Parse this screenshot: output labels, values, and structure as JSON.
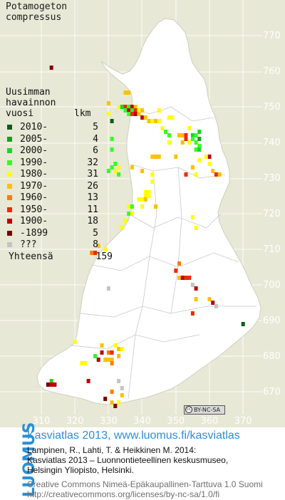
{
  "species": {
    "genus": "Potamogeton",
    "epithet": "compressus"
  },
  "legend": {
    "header_lines": [
      "Uusimman",
      "havainnon",
      "vuosi"
    ],
    "count_header": "lkm",
    "rows": [
      {
        "period": "2010-",
        "count": "5",
        "color": "#0b5e12"
      },
      {
        "period": "2005-",
        "count": "4",
        "color": "#11a21c"
      },
      {
        "period": "2000-",
        "count": "6",
        "color": "#19d624"
      },
      {
        "period": "1990-",
        "count": "32",
        "color": "#33ff1f"
      },
      {
        "period": "1980-",
        "count": "31",
        "color": "#ffff00"
      },
      {
        "period": "1970-",
        "count": "26",
        "color": "#ffc000"
      },
      {
        "period": "1960-",
        "count": "13",
        "color": "#ff7a00"
      },
      {
        "period": "1950-",
        "count": "11",
        "color": "#ee2a00"
      },
      {
        "period": "1900-",
        "count": "18",
        "color": "#c00000"
      },
      {
        "period": "-1899",
        "count": "5",
        "color": "#7a0000"
      },
      {
        "period": "???",
        "count": "8",
        "color": "#c4c4c4"
      }
    ],
    "total_label": "Yhteensä",
    "total_value": "159"
  },
  "axes": {
    "y_ticks": [
      "770",
      "760",
      "750",
      "740",
      "730",
      "720",
      "710",
      "700",
      "690",
      "680",
      "670"
    ],
    "x_ticks": [
      "310",
      "320",
      "330",
      "340",
      "350",
      "360",
      "370"
    ]
  },
  "badge": {
    "symbol": "cc",
    "text": "BY-NC-SA"
  },
  "footer": {
    "logo": "LUOMUS",
    "title": "Kasviatlas 2013, www.luomus.fi/kasviatlas",
    "citation_lines": [
      "Lampinen, R., Lahti, T. & Heikkinen M. 2014:",
      "Kasviatlas 2013 – Luonnontieteellinen keskusmuseo,",
      "Helsingin Yliopisto, Helsinki."
    ],
    "license_lines": [
      "Creative Commons Nimeä-Epäkaupallinen-Tarttuva 1.0 Suomi",
      "http://creativecommons.org/licenses/by-nc-sa/1.0/fi"
    ]
  },
  "map_data": {
    "grid_units": "10 km (YKJ)",
    "records": [
      {
        "e": 313,
        "n": 761,
        "c": "#7a0000"
      },
      {
        "e": 335,
        "n": 754,
        "c": "#ffc000"
      },
      {
        "e": 336,
        "n": 754,
        "c": "#ffc000"
      },
      {
        "e": 330,
        "n": 751,
        "c": "#ffc000"
      },
      {
        "e": 333,
        "n": 750,
        "c": "#ffff00"
      },
      {
        "e": 334,
        "n": 750,
        "c": "#19d624"
      },
      {
        "e": 335,
        "n": 750,
        "c": "#ee2a00"
      },
      {
        "e": 336,
        "n": 750,
        "c": "#33ff1f"
      },
      {
        "e": 337,
        "n": 750,
        "c": "#c00000"
      },
      {
        "e": 338,
        "n": 750,
        "c": "#ffc000"
      },
      {
        "e": 335,
        "n": 749,
        "c": "#33ff1f"
      },
      {
        "e": 336,
        "n": 749,
        "c": "#c00000"
      },
      {
        "e": 337,
        "n": 749,
        "c": "#33ff1f"
      },
      {
        "e": 338,
        "n": 749,
        "c": "#ee2a00"
      },
      {
        "e": 339,
        "n": 749,
        "c": "#ffff00"
      },
      {
        "e": 340,
        "n": 749,
        "c": "#ffc000"
      },
      {
        "e": 345,
        "n": 749,
        "c": "#ffff00"
      },
      {
        "e": 336,
        "n": 748,
        "c": "#33ff1f"
      },
      {
        "e": 337,
        "n": 748,
        "c": "#ee2a00"
      },
      {
        "e": 338,
        "n": 748,
        "c": "#c00000"
      },
      {
        "e": 339,
        "n": 748,
        "c": "#ffc000"
      },
      {
        "e": 330,
        "n": 748,
        "c": "#ffff00"
      },
      {
        "e": 348,
        "n": 747,
        "c": "#ffff00"
      },
      {
        "e": 340,
        "n": 747,
        "c": "#c00000"
      },
      {
        "e": 341,
        "n": 747,
        "c": "#ffc000"
      },
      {
        "e": 349,
        "n": 747,
        "c": "#ffff00"
      },
      {
        "e": 331,
        "n": 746,
        "c": "#0b5e12"
      },
      {
        "e": 342,
        "n": 746,
        "c": "#ffc000"
      },
      {
        "e": 343,
        "n": 746,
        "c": "#ffff00"
      },
      {
        "e": 344,
        "n": 746,
        "c": "#ffc000"
      },
      {
        "e": 345,
        "n": 746,
        "c": "#ffff00"
      },
      {
        "e": 354,
        "n": 744,
        "c": "#ffff00"
      },
      {
        "e": 346,
        "n": 744,
        "c": "#ffff00"
      },
      {
        "e": 347,
        "n": 743,
        "c": "#33ff1f"
      },
      {
        "e": 348,
        "n": 742,
        "c": "#33ff1f"
      },
      {
        "e": 351,
        "n": 742,
        "c": "#ffc000"
      },
      {
        "e": 352,
        "n": 742,
        "c": "#ffc000"
      },
      {
        "e": 353,
        "n": 742,
        "c": "#ee2a00"
      },
      {
        "e": 355,
        "n": 742,
        "c": "#19d624"
      },
      {
        "e": 356,
        "n": 742,
        "c": "#33ff1f"
      },
      {
        "e": 357,
        "n": 743,
        "c": "#19d624"
      },
      {
        "e": 331,
        "n": 741,
        "c": "#33ff1f"
      },
      {
        "e": 353,
        "n": 741,
        "c": "#ee2a00"
      },
      {
        "e": 355,
        "n": 741,
        "c": "#33ff1f"
      },
      {
        "e": 357,
        "n": 741,
        "c": "#11a21c"
      },
      {
        "e": 348,
        "n": 740,
        "c": "#ffff00"
      },
      {
        "e": 352,
        "n": 740,
        "c": "#ffc000"
      },
      {
        "e": 354,
        "n": 740,
        "c": "#ffff00"
      },
      {
        "e": 356,
        "n": 740,
        "c": "#33ff1f"
      },
      {
        "e": 357,
        "n": 739,
        "c": "#33ff1f"
      },
      {
        "e": 331,
        "n": 738,
        "c": "#33ff1f"
      },
      {
        "e": 356,
        "n": 738,
        "c": "#33ff1f"
      },
      {
        "e": 357,
        "n": 738,
        "c": "#19d624"
      },
      {
        "e": 343,
        "n": 736,
        "c": "#ffc000"
      },
      {
        "e": 344,
        "n": 736,
        "c": "#ffc000"
      },
      {
        "e": 345,
        "n": 736,
        "c": "#ffc000"
      },
      {
        "e": 350,
        "n": 736,
        "c": "#ffc000"
      },
      {
        "e": 360,
        "n": 736,
        "c": "#c00000"
      },
      {
        "e": 357,
        "n": 735,
        "c": "#ffff00"
      },
      {
        "e": 359,
        "n": 736,
        "c": "#ffff00"
      },
      {
        "e": 332,
        "n": 734,
        "c": "#33ff1f"
      },
      {
        "e": 331,
        "n": 733,
        "c": "#33ff1f"
      },
      {
        "e": 333,
        "n": 733,
        "c": "#ffff00"
      },
      {
        "e": 337,
        "n": 733,
        "c": "#ffc000"
      },
      {
        "e": 355,
        "n": 733,
        "c": "#ffc000"
      },
      {
        "e": 360,
        "n": 734,
        "c": "#ffff00"
      },
      {
        "e": 361,
        "n": 732,
        "c": "#ffc000"
      },
      {
        "e": 330,
        "n": 732,
        "c": "#33ff1f"
      },
      {
        "e": 332,
        "n": 732,
        "c": "#ffff00"
      },
      {
        "e": 333,
        "n": 731,
        "c": "#33ff1f"
      },
      {
        "e": 340,
        "n": 732,
        "c": "#ffc000"
      },
      {
        "e": 343,
        "n": 731,
        "c": "#ffff00"
      },
      {
        "e": 353,
        "n": 731,
        "c": "#ee2a00"
      },
      {
        "e": 356,
        "n": 731,
        "c": "#ffff00"
      },
      {
        "e": 362,
        "n": 731,
        "c": "#ee2a00"
      },
      {
        "e": 363,
        "n": 731,
        "c": "#ffc000"
      },
      {
        "e": 343,
        "n": 729,
        "c": "#ffff00"
      },
      {
        "e": 341,
        "n": 726,
        "c": "#ffff00"
      },
      {
        "e": 342,
        "n": 726,
        "c": "#ffff00"
      },
      {
        "e": 341,
        "n": 725,
        "c": "#ffff00"
      },
      {
        "e": 342,
        "n": 725,
        "c": "#ffff00"
      },
      {
        "e": 339,
        "n": 724,
        "c": "#ffff00"
      },
      {
        "e": 340,
        "n": 724,
        "c": "#ffff00"
      },
      {
        "e": 341,
        "n": 724,
        "c": "#ffc000"
      },
      {
        "e": 336,
        "n": 722,
        "c": "#ffff00"
      },
      {
        "e": 337,
        "n": 722,
        "c": "#33ff1f"
      },
      {
        "e": 340,
        "n": 722,
        "c": "#ffff00"
      },
      {
        "e": 344,
        "n": 722,
        "c": "#ffc000"
      },
      {
        "e": 336,
        "n": 720,
        "c": "#33ff1f"
      },
      {
        "e": 337,
        "n": 720,
        "c": "#ffff00"
      },
      {
        "e": 335,
        "n": 718,
        "c": "#ffff00"
      },
      {
        "e": 334,
        "n": 716,
        "c": "#ffff00"
      },
      {
        "e": 355,
        "n": 719,
        "c": "#ffff00"
      },
      {
        "e": 356,
        "n": 716,
        "c": "#ffff00"
      },
      {
        "e": 329,
        "n": 710,
        "c": "#ffff00"
      },
      {
        "e": 325,
        "n": 709,
        "c": "#ff7a00"
      },
      {
        "e": 326,
        "n": 709,
        "c": "#ee2a00"
      },
      {
        "e": 327,
        "n": 711,
        "c": "#ffc000"
      },
      {
        "e": 351,
        "n": 706,
        "c": "#ff7a00"
      },
      {
        "e": 350,
        "n": 704,
        "c": "#ee2a00"
      },
      {
        "e": 351,
        "n": 702,
        "c": "#ffc000"
      },
      {
        "e": 352,
        "n": 702,
        "c": "#c00000"
      },
      {
        "e": 353,
        "n": 702,
        "c": "#ee2a00"
      },
      {
        "e": 354,
        "n": 702,
        "c": "#ee2a00"
      },
      {
        "e": 355,
        "n": 700,
        "c": "#c4c4c4"
      },
      {
        "e": 356,
        "n": 699,
        "c": "#c00000"
      },
      {
        "e": 356,
        "n": 696,
        "c": "#ffc000"
      },
      {
        "e": 360,
        "n": 696,
        "c": "#ffc000"
      },
      {
        "e": 361,
        "n": 695,
        "c": "#c00000"
      },
      {
        "e": 362,
        "n": 694,
        "c": "#c4c4c4"
      },
      {
        "e": 330,
        "n": 699,
        "c": "#c4c4c4"
      },
      {
        "e": 355,
        "n": 692,
        "c": "#ee2a00"
      },
      {
        "e": 370,
        "n": 689,
        "c": "#0b5e12"
      },
      {
        "e": 320,
        "n": 684,
        "c": "#ffff00"
      },
      {
        "e": 328,
        "n": 683,
        "c": "#ffc000"
      },
      {
        "e": 332,
        "n": 683,
        "c": "#ffff00"
      },
      {
        "e": 333,
        "n": 682,
        "c": "#ffc000"
      },
      {
        "e": 334,
        "n": 682,
        "c": "#ffff00"
      },
      {
        "e": 328,
        "n": 681,
        "c": "#c00000"
      },
      {
        "e": 330,
        "n": 681,
        "c": "#ff7a00"
      },
      {
        "e": 331,
        "n": 681,
        "c": "#ee2a00"
      },
      {
        "e": 333,
        "n": 680,
        "c": "#ffc000"
      },
      {
        "e": 326,
        "n": 680,
        "c": "#33ff1f"
      },
      {
        "e": 329,
        "n": 679,
        "c": "#ffc000"
      },
      {
        "e": 330,
        "n": 679,
        "c": "#ffc000"
      },
      {
        "e": 331,
        "n": 679,
        "c": "#ffc000"
      },
      {
        "e": 327,
        "n": 679,
        "c": "#c00000"
      },
      {
        "e": 331,
        "n": 678,
        "c": "#ff7a00"
      },
      {
        "e": 322,
        "n": 678,
        "c": "#ffff00"
      },
      {
        "e": 323,
        "n": 678,
        "c": "#ffff00"
      },
      {
        "e": 313,
        "n": 673,
        "c": "#19d624"
      },
      {
        "e": 312,
        "n": 672,
        "c": "#7a0000"
      },
      {
        "e": 313,
        "n": 672,
        "c": "#c00000"
      },
      {
        "e": 314,
        "n": 672,
        "c": "#c00000"
      },
      {
        "e": 324,
        "n": 673,
        "c": "#c00000"
      },
      {
        "e": 333,
        "n": 673,
        "c": "#c4c4c4"
      },
      {
        "e": 334,
        "n": 671,
        "c": "#c4c4c4"
      },
      {
        "e": 331,
        "n": 670,
        "c": "#ff7a00"
      },
      {
        "e": 329,
        "n": 668,
        "c": "#7a0000"
      },
      {
        "e": 334,
        "n": 669,
        "c": "#ffc000"
      },
      {
        "e": 333,
        "n": 667,
        "c": "#ffff00"
      },
      {
        "e": 331,
        "n": 667,
        "c": "#ffc000"
      },
      {
        "e": 332,
        "n": 666,
        "c": "#7a0000"
      }
    ]
  }
}
